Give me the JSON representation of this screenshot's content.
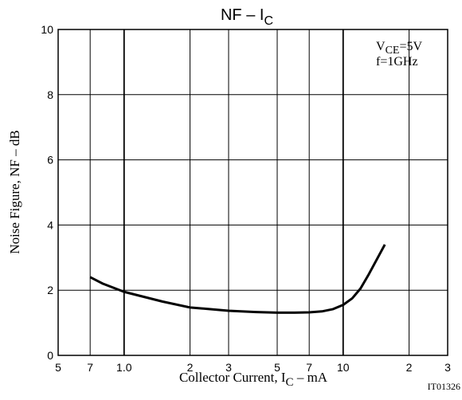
{
  "chart_data": {
    "type": "line",
    "title": "NF  –  I",
    "title_sub": "C",
    "x_label": "Collector Current, I",
    "x_label_sub": "C",
    "x_label_unit": "  –  mA",
    "y_label": "Noise Figure,  NF  –  dB",
    "annotations": {
      "vce": "V",
      "vce_sub": "CE",
      "vce_value": "=5V",
      "freq": "f=1GHz",
      "code": "IT01326"
    },
    "x_scale": "log",
    "xlim": [
      0.5,
      30
    ],
    "ylim": [
      0,
      10
    ],
    "xticks": [
      {
        "value": 0.5,
        "label": "5"
      },
      {
        "value": 0.7,
        "label": "7"
      },
      {
        "value": 1,
        "label": "1.0"
      },
      2,
      3,
      5,
      7,
      10,
      {
        "value": 20,
        "label": "2"
      },
      {
        "value": 30,
        "label": "3"
      }
    ],
    "yticks": [
      0,
      2,
      4,
      6,
      8,
      10
    ],
    "grid": true,
    "x": [
      0.7,
      0.8,
      1,
      1.5,
      2,
      3,
      4,
      5,
      6,
      7,
      8,
      9,
      10,
      11,
      12,
      13,
      14,
      15.5
    ],
    "series": [
      {
        "color": "#000000",
        "values": [
          2.4,
          2.2,
          1.95,
          1.65,
          1.47,
          1.37,
          1.33,
          1.31,
          1.31,
          1.32,
          1.35,
          1.42,
          1.55,
          1.75,
          2.05,
          2.45,
          2.85,
          3.4
        ]
      }
    ]
  }
}
